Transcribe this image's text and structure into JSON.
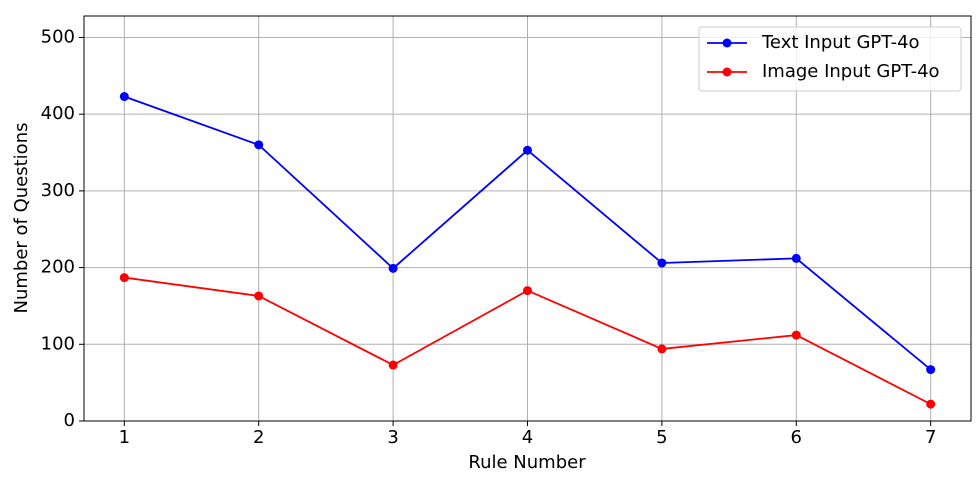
{
  "chart_data": {
    "type": "line",
    "x_label": "Rule Number",
    "y_label": "Number of Questions",
    "x": [
      1,
      2,
      3,
      4,
      5,
      6,
      7
    ],
    "series": [
      {
        "name": "Text Input GPT-4o",
        "color": "#0000ff",
        "values": [
          423,
          360,
          199,
          353,
          206,
          212,
          67
        ]
      },
      {
        "name": "Image Input GPT-4o",
        "color": "#ff0000",
        "values": [
          187,
          163,
          73,
          170,
          94,
          112,
          22
        ]
      }
    ],
    "xlim": [
      0.7,
      7.3
    ],
    "xticks": [
      1,
      2,
      3,
      4,
      5,
      6,
      7
    ],
    "ylim": [
      0,
      528
    ],
    "yticks": [
      0,
      100,
      200,
      300,
      400,
      500
    ],
    "grid": true,
    "legend": "upper-right"
  }
}
